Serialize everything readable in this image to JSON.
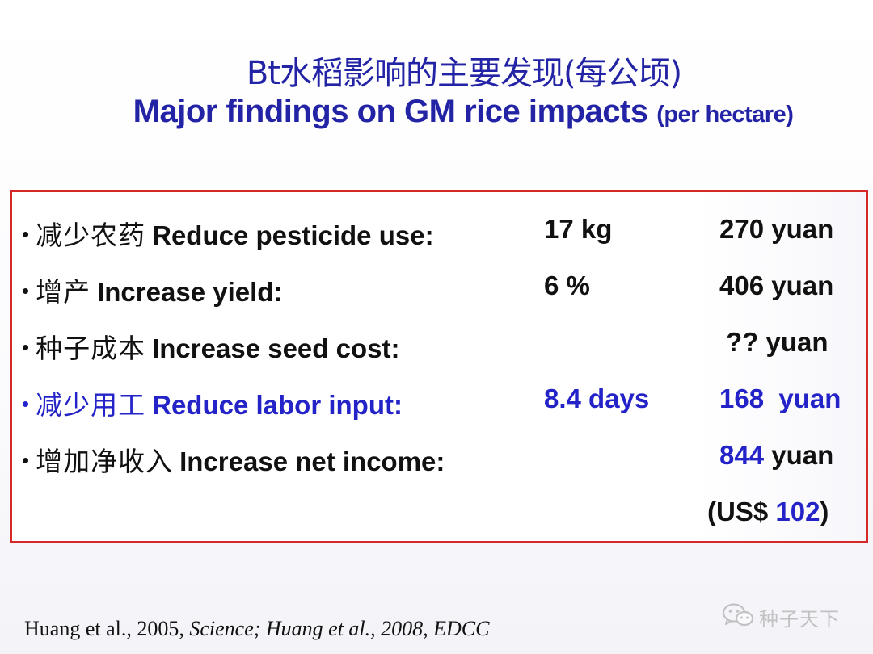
{
  "title": {
    "cn": "Bt水稻影响的主要发现(每公顷)",
    "en_main": "Major findings on GM rice impacts",
    "en_small": "(per hectare)"
  },
  "findings": [
    {
      "bullet": "•",
      "cn": "减少农药",
      "en": "Reduce pesticide use:",
      "amount": "17 kg",
      "value": "270 yuan",
      "highlight": false
    },
    {
      "bullet": "•",
      "cn": "增产",
      "en": "Increase yield:",
      "amount": "6 %",
      "value": "406 yuan",
      "highlight": false
    },
    {
      "bullet": "•",
      "cn": "种子成本",
      "en": "Increase seed cost:",
      "amount": "",
      "value": "?? yuan",
      "highlight": false
    },
    {
      "bullet": "•",
      "cn": "减少用工",
      "en": "Reduce labor input:",
      "amount": "8.4 days",
      "value": "168  yuan",
      "highlight": true
    },
    {
      "bullet": "•",
      "cn": "增加净收入",
      "en": "Increase net income:",
      "amount": "",
      "value_number": "844",
      "value_unit": "yuan",
      "highlight": false
    }
  ],
  "usd": {
    "open": "(US$ ",
    "number": "102",
    "close": ")"
  },
  "citation": {
    "part1": "Huang et al., 2005, ",
    "part2": "Science; Huang et al., 2008, EDCC"
  },
  "watermark": {
    "text": "种子天下",
    "icon": "wechat-icon"
  },
  "colors": {
    "title": "#2323a6",
    "highlight": "#2323c8",
    "border": "#d72828"
  }
}
